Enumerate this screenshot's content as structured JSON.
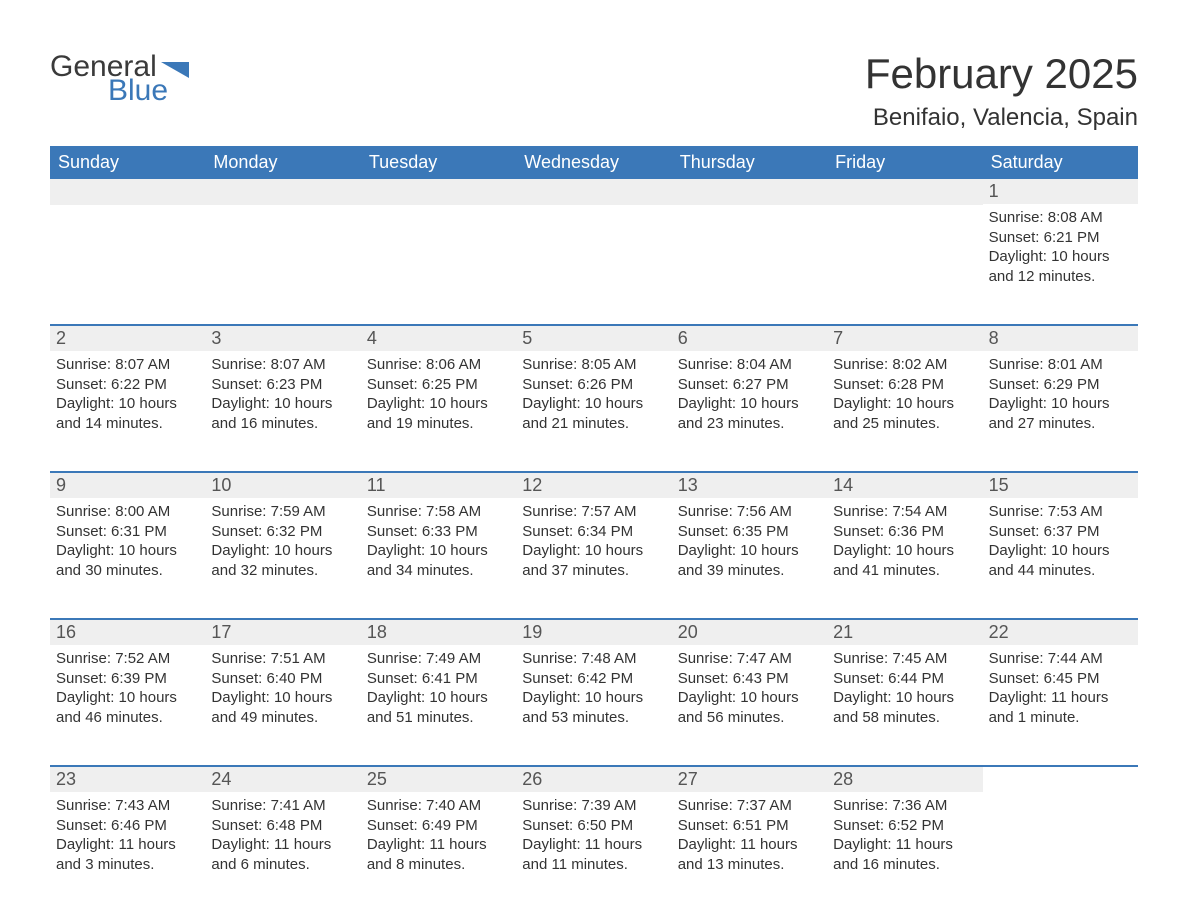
{
  "logo": {
    "text_general": "General",
    "text_blue": "Blue",
    "flag_color": "#3b78b8"
  },
  "title": {
    "main": "February 2025",
    "sub": "Benifaio, Valencia, Spain"
  },
  "colors": {
    "header_bg": "#3b78b8",
    "header_text": "#ffffff",
    "daynum_bg": "#efefef",
    "body_bg": "#ffffff",
    "text": "#333333",
    "divider": "#3b78b8"
  },
  "day_names": [
    "Sunday",
    "Monday",
    "Tuesday",
    "Wednesday",
    "Thursday",
    "Friday",
    "Saturday"
  ],
  "weeks": [
    [
      {
        "empty": true
      },
      {
        "empty": true
      },
      {
        "empty": true
      },
      {
        "empty": true
      },
      {
        "empty": true
      },
      {
        "empty": true
      },
      {
        "day": "1",
        "sunrise": "Sunrise: 8:08 AM",
        "sunset": "Sunset: 6:21 PM",
        "daylight1": "Daylight: 10 hours",
        "daylight2": "and 12 minutes."
      }
    ],
    [
      {
        "day": "2",
        "sunrise": "Sunrise: 8:07 AM",
        "sunset": "Sunset: 6:22 PM",
        "daylight1": "Daylight: 10 hours",
        "daylight2": "and 14 minutes."
      },
      {
        "day": "3",
        "sunrise": "Sunrise: 8:07 AM",
        "sunset": "Sunset: 6:23 PM",
        "daylight1": "Daylight: 10 hours",
        "daylight2": "and 16 minutes."
      },
      {
        "day": "4",
        "sunrise": "Sunrise: 8:06 AM",
        "sunset": "Sunset: 6:25 PM",
        "daylight1": "Daylight: 10 hours",
        "daylight2": "and 19 minutes."
      },
      {
        "day": "5",
        "sunrise": "Sunrise: 8:05 AM",
        "sunset": "Sunset: 6:26 PM",
        "daylight1": "Daylight: 10 hours",
        "daylight2": "and 21 minutes."
      },
      {
        "day": "6",
        "sunrise": "Sunrise: 8:04 AM",
        "sunset": "Sunset: 6:27 PM",
        "daylight1": "Daylight: 10 hours",
        "daylight2": "and 23 minutes."
      },
      {
        "day": "7",
        "sunrise": "Sunrise: 8:02 AM",
        "sunset": "Sunset: 6:28 PM",
        "daylight1": "Daylight: 10 hours",
        "daylight2": "and 25 minutes."
      },
      {
        "day": "8",
        "sunrise": "Sunrise: 8:01 AM",
        "sunset": "Sunset: 6:29 PM",
        "daylight1": "Daylight: 10 hours",
        "daylight2": "and 27 minutes."
      }
    ],
    [
      {
        "day": "9",
        "sunrise": "Sunrise: 8:00 AM",
        "sunset": "Sunset: 6:31 PM",
        "daylight1": "Daylight: 10 hours",
        "daylight2": "and 30 minutes."
      },
      {
        "day": "10",
        "sunrise": "Sunrise: 7:59 AM",
        "sunset": "Sunset: 6:32 PM",
        "daylight1": "Daylight: 10 hours",
        "daylight2": "and 32 minutes."
      },
      {
        "day": "11",
        "sunrise": "Sunrise: 7:58 AM",
        "sunset": "Sunset: 6:33 PM",
        "daylight1": "Daylight: 10 hours",
        "daylight2": "and 34 minutes."
      },
      {
        "day": "12",
        "sunrise": "Sunrise: 7:57 AM",
        "sunset": "Sunset: 6:34 PM",
        "daylight1": "Daylight: 10 hours",
        "daylight2": "and 37 minutes."
      },
      {
        "day": "13",
        "sunrise": "Sunrise: 7:56 AM",
        "sunset": "Sunset: 6:35 PM",
        "daylight1": "Daylight: 10 hours",
        "daylight2": "and 39 minutes."
      },
      {
        "day": "14",
        "sunrise": "Sunrise: 7:54 AM",
        "sunset": "Sunset: 6:36 PM",
        "daylight1": "Daylight: 10 hours",
        "daylight2": "and 41 minutes."
      },
      {
        "day": "15",
        "sunrise": "Sunrise: 7:53 AM",
        "sunset": "Sunset: 6:37 PM",
        "daylight1": "Daylight: 10 hours",
        "daylight2": "and 44 minutes."
      }
    ],
    [
      {
        "day": "16",
        "sunrise": "Sunrise: 7:52 AM",
        "sunset": "Sunset: 6:39 PM",
        "daylight1": "Daylight: 10 hours",
        "daylight2": "and 46 minutes."
      },
      {
        "day": "17",
        "sunrise": "Sunrise: 7:51 AM",
        "sunset": "Sunset: 6:40 PM",
        "daylight1": "Daylight: 10 hours",
        "daylight2": "and 49 minutes."
      },
      {
        "day": "18",
        "sunrise": "Sunrise: 7:49 AM",
        "sunset": "Sunset: 6:41 PM",
        "daylight1": "Daylight: 10 hours",
        "daylight2": "and 51 minutes."
      },
      {
        "day": "19",
        "sunrise": "Sunrise: 7:48 AM",
        "sunset": "Sunset: 6:42 PM",
        "daylight1": "Daylight: 10 hours",
        "daylight2": "and 53 minutes."
      },
      {
        "day": "20",
        "sunrise": "Sunrise: 7:47 AM",
        "sunset": "Sunset: 6:43 PM",
        "daylight1": "Daylight: 10 hours",
        "daylight2": "and 56 minutes."
      },
      {
        "day": "21",
        "sunrise": "Sunrise: 7:45 AM",
        "sunset": "Sunset: 6:44 PM",
        "daylight1": "Daylight: 10 hours",
        "daylight2": "and 58 minutes."
      },
      {
        "day": "22",
        "sunrise": "Sunrise: 7:44 AM",
        "sunset": "Sunset: 6:45 PM",
        "daylight1": "Daylight: 11 hours",
        "daylight2": "and 1 minute."
      }
    ],
    [
      {
        "day": "23",
        "sunrise": "Sunrise: 7:43 AM",
        "sunset": "Sunset: 6:46 PM",
        "daylight1": "Daylight: 11 hours",
        "daylight2": "and 3 minutes."
      },
      {
        "day": "24",
        "sunrise": "Sunrise: 7:41 AM",
        "sunset": "Sunset: 6:48 PM",
        "daylight1": "Daylight: 11 hours",
        "daylight2": "and 6 minutes."
      },
      {
        "day": "25",
        "sunrise": "Sunrise: 7:40 AM",
        "sunset": "Sunset: 6:49 PM",
        "daylight1": "Daylight: 11 hours",
        "daylight2": "and 8 minutes."
      },
      {
        "day": "26",
        "sunrise": "Sunrise: 7:39 AM",
        "sunset": "Sunset: 6:50 PM",
        "daylight1": "Daylight: 11 hours",
        "daylight2": "and 11 minutes."
      },
      {
        "day": "27",
        "sunrise": "Sunrise: 7:37 AM",
        "sunset": "Sunset: 6:51 PM",
        "daylight1": "Daylight: 11 hours",
        "daylight2": "and 13 minutes."
      },
      {
        "day": "28",
        "sunrise": "Sunrise: 7:36 AM",
        "sunset": "Sunset: 6:52 PM",
        "daylight1": "Daylight: 11 hours",
        "daylight2": "and 16 minutes."
      },
      {
        "empty": true,
        "nobar": true
      }
    ]
  ]
}
